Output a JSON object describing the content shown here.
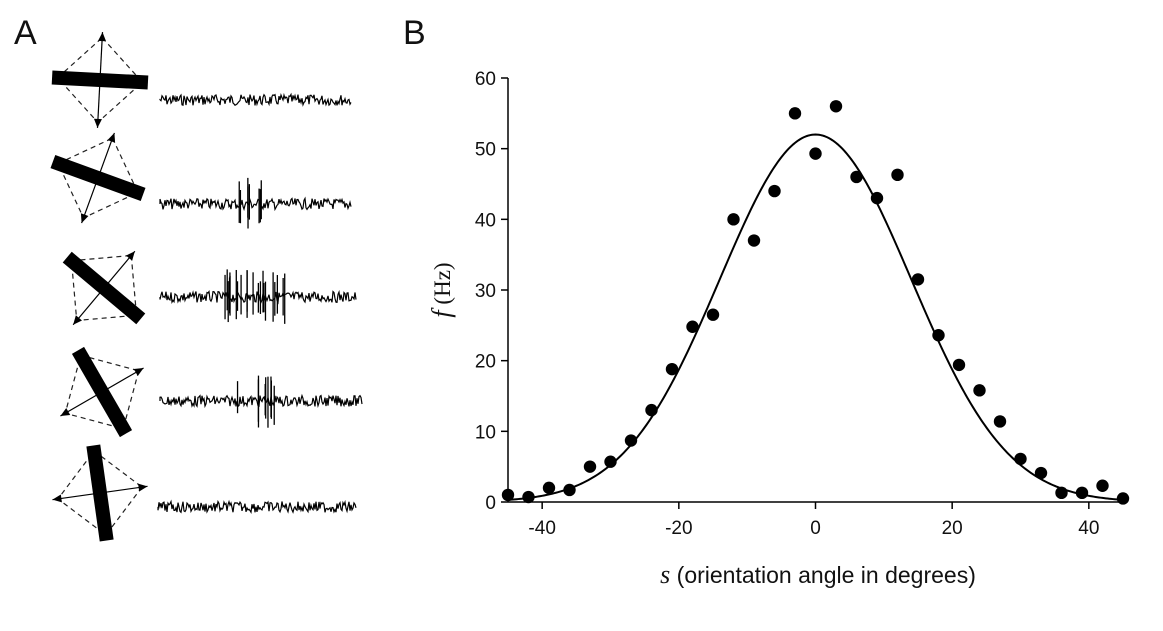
{
  "panel_a": {
    "letter": "A",
    "stimuli": [
      {
        "bar_angle_deg": 3,
        "motion_angle_deg": 93,
        "spike_count": 0
      },
      {
        "bar_angle_deg": 20,
        "motion_angle_deg": 110,
        "spike_count": 8
      },
      {
        "bar_angle_deg": 40,
        "motion_angle_deg": 130,
        "spike_count": 22
      },
      {
        "bar_angle_deg": 60,
        "motion_angle_deg": 150,
        "spike_count": 9
      },
      {
        "bar_angle_deg": 82,
        "motion_angle_deg": 172,
        "spike_count": 0
      }
    ]
  },
  "panel_b": {
    "letter": "B"
  },
  "chart_data": {
    "type": "scatter",
    "title": "",
    "xlabel_symbol": "s",
    "xlabel_text": " (orientation angle in degrees)",
    "ylabel_symbol": "f",
    "ylabel_text": " (Hz)",
    "xlim": [
      -45,
      45
    ],
    "ylim": [
      0,
      60
    ],
    "x_ticks": [
      -40,
      -20,
      0,
      20,
      40
    ],
    "y_ticks": [
      0,
      10,
      20,
      30,
      40,
      50,
      60
    ],
    "grid": false,
    "series": [
      {
        "kind": "points",
        "x": [
          -45,
          -42,
          -39,
          -36,
          -33,
          -30,
          -27,
          -24,
          -21,
          -18,
          -15,
          -12,
          -9,
          -6,
          -3,
          0,
          3,
          6,
          9,
          12,
          15,
          18,
          21,
          24,
          27,
          30,
          33,
          36,
          39,
          42,
          45
        ],
        "y": [
          1.0,
          0.7,
          2.0,
          1.7,
          5.0,
          5.7,
          8.7,
          13.0,
          18.8,
          24.8,
          26.5,
          40.0,
          37.0,
          44.0,
          55.0,
          49.3,
          56.0,
          46.0,
          43.0,
          46.3,
          31.5,
          23.6,
          19.4,
          15.8,
          11.4,
          6.1,
          4.1,
          1.3,
          1.3,
          2.3,
          0.5
        ]
      },
      {
        "kind": "fit",
        "model": "gaussian",
        "peak": 52,
        "center": 0,
        "sigma": 14
      }
    ]
  }
}
